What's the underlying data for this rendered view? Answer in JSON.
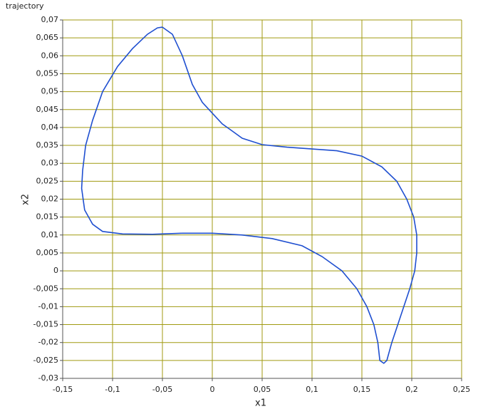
{
  "chart_data": {
    "type": "line",
    "title": "trajectory",
    "x_label": "x1",
    "y_label": "x2",
    "color": "#1f4fd0",
    "grid": true,
    "grid_color": "#a09a10",
    "x": [
      -0.05,
      -0.04,
      -0.03,
      -0.02,
      -0.01,
      0,
      0.01,
      0.02,
      0.03,
      0.05,
      0.075,
      0.1,
      0.125,
      0.15,
      0.17,
      0.185,
      0.195,
      0.202,
      0.205,
      0.205,
      0.203,
      0.198,
      0.192,
      0.186,
      0.18,
      0.175,
      0.172,
      0.168,
      0.166,
      0.162,
      0.155,
      0.145,
      0.13,
      0.11,
      0.09,
      0.06,
      0.03,
      0,
      -0.03,
      -0.06,
      -0.09,
      -0.11,
      -0.12,
      -0.128,
      -0.131,
      -0.13,
      -0.127,
      -0.12,
      -0.11,
      -0.095,
      -0.08,
      -0.065,
      -0.055,
      -0.05
    ],
    "values": [
      0.068,
      0.066,
      0.06,
      0.052,
      0.047,
      0.044,
      0.041,
      0.039,
      0.037,
      0.0352,
      0.0345,
      0.034,
      0.0335,
      0.032,
      0.029,
      0.025,
      0.02,
      0.015,
      0.01,
      0.005,
      0,
      -0.005,
      -0.01,
      -0.015,
      -0.02,
      -0.025,
      -0.0258,
      -0.025,
      -0.02,
      -0.015,
      -0.01,
      -0.005,
      0,
      0.004,
      0.007,
      0.009,
      0.01,
      0.0105,
      0.0105,
      0.0102,
      0.0103,
      0.011,
      0.013,
      0.017,
      0.023,
      0.028,
      0.035,
      0.042,
      0.05,
      0.057,
      0.062,
      0.066,
      0.0678,
      0.068
    ],
    "xlim": [
      -0.15,
      0.25
    ],
    "xticks": [
      {
        "value": -0.15,
        "label": "-0,15"
      },
      {
        "value": -0.1,
        "label": "-0,1"
      },
      {
        "value": -0.05,
        "label": "-0,05"
      },
      0,
      {
        "value": 0.05,
        "label": "0,05"
      },
      {
        "value": 0.1,
        "label": "0,1"
      },
      {
        "value": 0.15,
        "label": "0,15"
      },
      {
        "value": 0.2,
        "label": "0,2"
      },
      {
        "value": 0.25,
        "label": "0,25"
      }
    ],
    "ylim": [
      -0.03,
      0.07
    ],
    "yticks": [
      {
        "value": -0.03,
        "label": "-0,03"
      },
      {
        "value": -0.025,
        "label": "-0,025"
      },
      {
        "value": -0.02,
        "label": "-0,02"
      },
      {
        "value": -0.015,
        "label": "-0,015"
      },
      {
        "value": -0.01,
        "label": "-0,01"
      },
      {
        "value": -0.005,
        "label": "-0,005"
      },
      0,
      {
        "value": 0.005,
        "label": "0,005"
      },
      {
        "value": 0.01,
        "label": "0,01"
      },
      {
        "value": 0.015,
        "label": "0,015"
      },
      {
        "value": 0.02,
        "label": "0,02"
      },
      {
        "value": 0.025,
        "label": "0,025"
      },
      {
        "value": 0.03,
        "label": "0,03"
      },
      {
        "value": 0.035,
        "label": "0,035"
      },
      {
        "value": 0.04,
        "label": "0,04"
      },
      {
        "value": 0.045,
        "label": "0,045"
      },
      {
        "value": 0.05,
        "label": "0,05"
      },
      {
        "value": 0.055,
        "label": "0,055"
      },
      {
        "value": 0.06,
        "label": "0,06"
      },
      {
        "value": 0.065,
        "label": "0,065"
      },
      {
        "value": 0.07,
        "label": "0,07"
      }
    ]
  }
}
